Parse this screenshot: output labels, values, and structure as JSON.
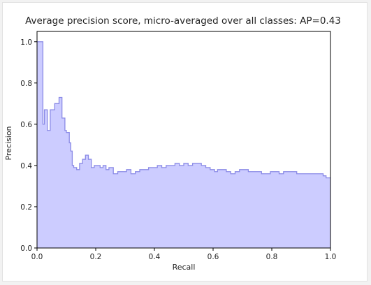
{
  "chart_data": {
    "type": "area",
    "step": "post",
    "title": "Average precision score, micro-averaged over all classes: AP=0.43",
    "xlabel": "Recall",
    "ylabel": "Precision",
    "xlim": [
      0.0,
      1.0
    ],
    "ylim": [
      0.0,
      1.05
    ],
    "xticks": [
      0.0,
      0.2,
      0.4,
      0.6,
      0.8,
      1.0
    ],
    "xtick_labels": [
      "0.0",
      "0.2",
      "0.4",
      "0.6",
      "0.8",
      "1.0"
    ],
    "yticks": [
      0.0,
      0.2,
      0.4,
      0.6,
      0.8,
      1.0
    ],
    "ytick_labels": [
      "0.0",
      "0.2",
      "0.4",
      "0.6",
      "0.8",
      "1.0"
    ],
    "grid": false,
    "fill_color": "#ccccff",
    "line_color": "#8a8ae6",
    "recall": [
      0.0,
      0.02,
      0.025,
      0.035,
      0.045,
      0.06,
      0.075,
      0.085,
      0.095,
      0.1,
      0.11,
      0.115,
      0.12,
      0.125,
      0.135,
      0.145,
      0.155,
      0.165,
      0.175,
      0.185,
      0.195,
      0.205,
      0.215,
      0.225,
      0.235,
      0.245,
      0.26,
      0.275,
      0.29,
      0.305,
      0.32,
      0.335,
      0.35,
      0.365,
      0.38,
      0.395,
      0.41,
      0.425,
      0.44,
      0.455,
      0.47,
      0.485,
      0.5,
      0.515,
      0.53,
      0.545,
      0.56,
      0.575,
      0.59,
      0.605,
      0.615,
      0.63,
      0.645,
      0.66,
      0.675,
      0.69,
      0.705,
      0.72,
      0.735,
      0.75,
      0.765,
      0.78,
      0.795,
      0.81,
      0.825,
      0.84,
      0.855,
      0.87,
      0.885,
      0.9,
      0.915,
      0.93,
      0.945,
      0.96,
      0.975,
      0.985,
      0.99,
      1.0
    ],
    "precision": [
      1.0,
      0.6,
      0.67,
      0.57,
      0.67,
      0.7,
      0.73,
      0.63,
      0.57,
      0.56,
      0.51,
      0.47,
      0.4,
      0.39,
      0.38,
      0.41,
      0.43,
      0.45,
      0.43,
      0.39,
      0.4,
      0.4,
      0.39,
      0.4,
      0.38,
      0.39,
      0.36,
      0.37,
      0.37,
      0.38,
      0.36,
      0.37,
      0.38,
      0.38,
      0.39,
      0.39,
      0.4,
      0.39,
      0.4,
      0.4,
      0.41,
      0.4,
      0.41,
      0.4,
      0.41,
      0.41,
      0.4,
      0.39,
      0.38,
      0.37,
      0.38,
      0.38,
      0.37,
      0.36,
      0.37,
      0.38,
      0.38,
      0.37,
      0.37,
      0.37,
      0.36,
      0.36,
      0.37,
      0.37,
      0.36,
      0.37,
      0.37,
      0.37,
      0.36,
      0.36,
      0.36,
      0.36,
      0.36,
      0.36,
      0.35,
      0.34,
      0.34,
      0.34
    ]
  }
}
